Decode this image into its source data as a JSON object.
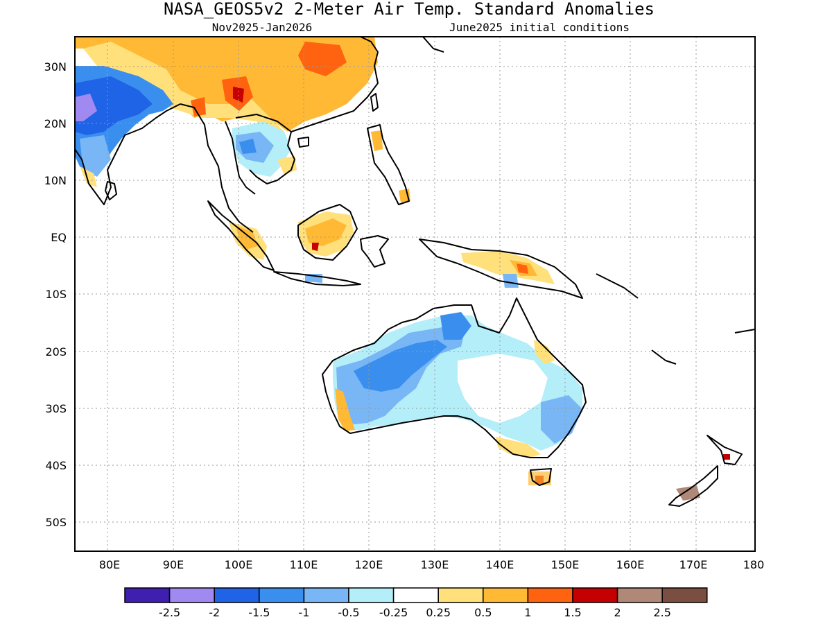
{
  "title": "NASA_GEOS5v2 2-Meter Air Temp. Standard Anomalies",
  "subtitle_left": "Nov2025-Jan2026",
  "subtitle_right": "June2025 initial conditions",
  "lat_labels": [
    "30N",
    "20N",
    "10N",
    "EQ",
    "10S",
    "20S",
    "30S",
    "40S",
    "50S"
  ],
  "lon_labels": [
    "80E",
    "90E",
    "100E",
    "110E",
    "120E",
    "130E",
    "140E",
    "150E",
    "160E",
    "170E",
    "180"
  ],
  "legend": {
    "colors": [
      "#3f1fb0",
      "#a089f0",
      "#1f63e6",
      "#3a8fee",
      "#78b6f5",
      "#b4eef8",
      "#ffffff",
      "#ffe07a",
      "#ffb934",
      "#ff6310",
      "#c50000",
      "#b08878",
      "#7a4e40"
    ],
    "labels": [
      "-2.5",
      "-2",
      "-1.5",
      "-1",
      "-0.5",
      "-0.25",
      "0.25",
      "0.5",
      "1",
      "1.5",
      "2",
      "2.5"
    ]
  }
}
